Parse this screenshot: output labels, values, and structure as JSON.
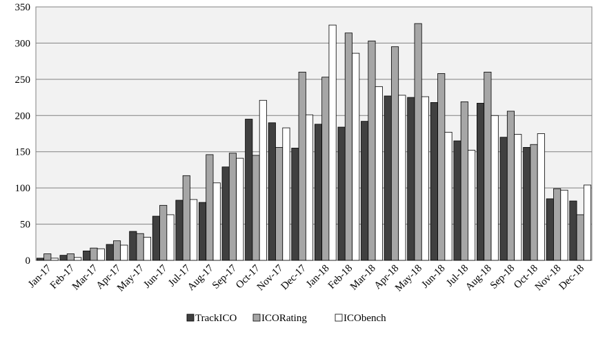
{
  "chart_data": {
    "type": "bar",
    "title": "",
    "xlabel": "",
    "ylabel": "",
    "ylim": [
      0,
      350
    ],
    "yticks": [
      0,
      50,
      100,
      150,
      200,
      250,
      300,
      350
    ],
    "grid": true,
    "legend": "bottom",
    "categories": [
      "Jan-17",
      "Feb-17",
      "Mar-17",
      "Apr-17",
      "May-17",
      "Jun-17",
      "Jul-17",
      "Aug-17",
      "Sep-17",
      "Oct-17",
      "Nov-17",
      "Dec-17",
      "Jan-18",
      "Feb-18",
      "Mar-18",
      "Apr-18",
      "May-18",
      "Jun-18",
      "Jul-18",
      "Aug-18",
      "Sep-18",
      "Oct-18",
      "Nov-18",
      "Dec-18"
    ],
    "series": [
      {
        "name": "TrackICO",
        "color": "#404040",
        "values": [
          3,
          7,
          13,
          22,
          40,
          61,
          83,
          80,
          129,
          195,
          190,
          155,
          188,
          184,
          192,
          227,
          225,
          218,
          165,
          217,
          170,
          156,
          85,
          82
        ]
      },
      {
        "name": "ICORating",
        "color": "#a6a6a6",
        "values": [
          9,
          9,
          17,
          27,
          37,
          76,
          117,
          146,
          148,
          145,
          156,
          260,
          253,
          314,
          303,
          295,
          327,
          258,
          219,
          260,
          206,
          160,
          99,
          63
        ]
      },
      {
        "name": "ICObench",
        "color": "#ffffff",
        "values": [
          3,
          4,
          16,
          21,
          32,
          63,
          84,
          107,
          141,
          221,
          183,
          201,
          325,
          286,
          240,
          228,
          226,
          177,
          152,
          200,
          174,
          175,
          97,
          104
        ]
      }
    ]
  }
}
